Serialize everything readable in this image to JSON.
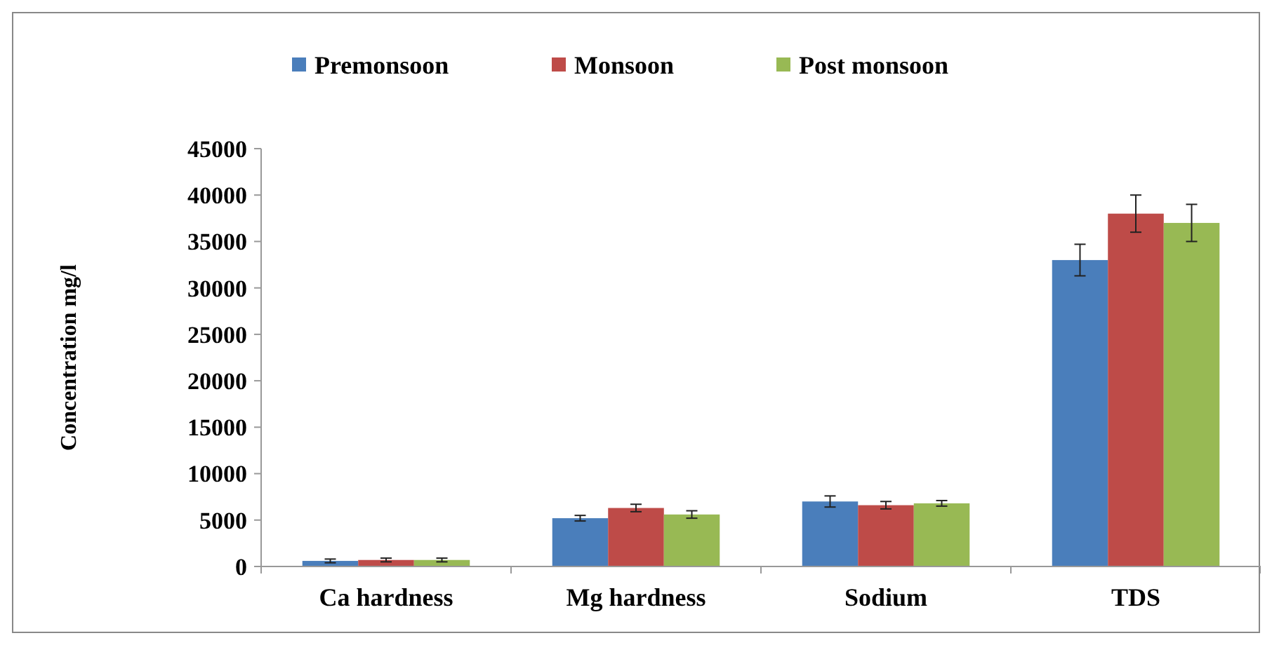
{
  "chart_data": {
    "type": "bar",
    "ylabel": "Concentration mg/l",
    "categories": [
      "Ca hardness",
      "Mg hardness",
      "Sodium",
      "TDS"
    ],
    "series": [
      {
        "name": "Premonsoon",
        "color": "#4a7ebb",
        "values": [
          600,
          5200,
          7000,
          33000
        ],
        "errors": [
          200,
          300,
          600,
          1700
        ]
      },
      {
        "name": "Monsoon",
        "color": "#be4b48",
        "values": [
          700,
          6300,
          6600,
          38000
        ],
        "errors": [
          200,
          400,
          400,
          2000
        ]
      },
      {
        "name": "Post monsoon",
        "color": "#98b954",
        "values": [
          700,
          5600,
          6800,
          37000
        ],
        "errors": [
          200,
          400,
          300,
          2000
        ]
      }
    ],
    "ylim": [
      0,
      45000
    ],
    "yticks": [
      0,
      5000,
      10000,
      15000,
      20000,
      25000,
      30000,
      35000,
      40000,
      45000
    ],
    "grid": false,
    "legend": "top"
  }
}
